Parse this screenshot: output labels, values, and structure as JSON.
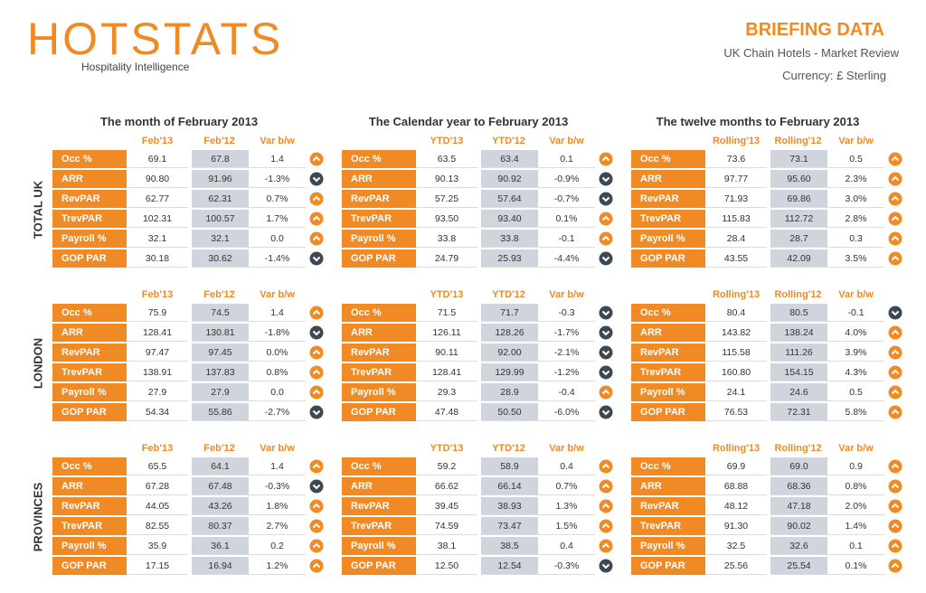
{
  "header": {
    "logo": "HOTSTATS",
    "tagline": "Hospitality Intelligence",
    "title": "BRIEFING DATA",
    "subtitle": "UK Chain Hotels - Market Review",
    "currency": "Currency: £ Sterling"
  },
  "panels": [
    {
      "title": "The month of February 2013",
      "columns": [
        "Feb'13",
        "Feb'12",
        "Var b/w"
      ]
    },
    {
      "title": "The Calendar year to February 2013",
      "columns": [
        "YTD'13",
        "YTD'12",
        "Var b/w"
      ]
    },
    {
      "title": "The twelve months to February 2013",
      "columns": [
        "Rolling'13",
        "Rolling'12",
        "Var b/w"
      ]
    }
  ],
  "row_labels": [
    "Occ %",
    "ARR",
    "RevPAR",
    "TrevPAR",
    "Payroll %",
    "GOP PAR"
  ],
  "groups": [
    {
      "label": "TOTAL UK",
      "values": [
        [
          [
            "69.1",
            "67.8",
            "1.4"
          ],
          [
            "90.80",
            "91.96",
            "-1.3%"
          ],
          [
            "62.77",
            "62.31",
            "0.7%"
          ],
          [
            "102.31",
            "100.57",
            "1.7%"
          ],
          [
            "32.1",
            "32.1",
            "0.0"
          ],
          [
            "30.18",
            "30.62",
            "-1.4%"
          ]
        ],
        [
          [
            "63.5",
            "63.4",
            "0.1"
          ],
          [
            "90.13",
            "90.92",
            "-0.9%"
          ],
          [
            "57.25",
            "57.64",
            "-0.7%"
          ],
          [
            "93.50",
            "93.40",
            "0.1%"
          ],
          [
            "33.8",
            "33.8",
            "-0.1"
          ],
          [
            "24.79",
            "25.93",
            "-4.4%"
          ]
        ],
        [
          [
            "73.6",
            "73.1",
            "0.5"
          ],
          [
            "97.77",
            "95.60",
            "2.3%"
          ],
          [
            "71.93",
            "69.86",
            "3.0%"
          ],
          [
            "115.83",
            "112.72",
            "2.8%"
          ],
          [
            "28.4",
            "28.7",
            "0.3"
          ],
          [
            "43.55",
            "42.09",
            "3.5%"
          ]
        ]
      ]
    },
    {
      "label": "LONDON",
      "values": [
        [
          [
            "75.9",
            "74.5",
            "1.4"
          ],
          [
            "128.41",
            "130.81",
            "-1.8%"
          ],
          [
            "97.47",
            "97.45",
            "0.0%"
          ],
          [
            "138.91",
            "137.83",
            "0.8%"
          ],
          [
            "27.9",
            "27.9",
            "0.0"
          ],
          [
            "54.34",
            "55.86",
            "-2.7%"
          ]
        ],
        [
          [
            "71.5",
            "71.7",
            "-0.3"
          ],
          [
            "126.11",
            "128.26",
            "-1.7%"
          ],
          [
            "90.11",
            "92.00",
            "-2.1%"
          ],
          [
            "128.41",
            "129.99",
            "-1.2%"
          ],
          [
            "29.3",
            "28.9",
            "-0.4"
          ],
          [
            "47.48",
            "50.50",
            "-6.0%"
          ]
        ],
        [
          [
            "80.4",
            "80.5",
            "-0.1"
          ],
          [
            "143.82",
            "138.24",
            "4.0%"
          ],
          [
            "115.58",
            "111.26",
            "3.9%"
          ],
          [
            "160.80",
            "154.15",
            "4.3%"
          ],
          [
            "24.1",
            "24.6",
            "0.5"
          ],
          [
            "76.53",
            "72.31",
            "5.8%"
          ]
        ]
      ]
    },
    {
      "label": "PROVINCES",
      "values": [
        [
          [
            "65.5",
            "64.1",
            "1.4"
          ],
          [
            "67.28",
            "67.48",
            "-0.3%"
          ],
          [
            "44.05",
            "43.26",
            "1.8%"
          ],
          [
            "82.55",
            "80.37",
            "2.7%"
          ],
          [
            "35.9",
            "36.1",
            "0.2"
          ],
          [
            "17.15",
            "16.94",
            "1.2%"
          ]
        ],
        [
          [
            "59.2",
            "58.9",
            "0.4"
          ],
          [
            "66.62",
            "66.14",
            "0.7%"
          ],
          [
            "39.45",
            "38.93",
            "1.3%"
          ],
          [
            "74.59",
            "73.47",
            "1.5%"
          ],
          [
            "38.1",
            "38.5",
            "0.4"
          ],
          [
            "12.50",
            "12.54",
            "-0.3%"
          ]
        ],
        [
          [
            "69.9",
            "69.0",
            "0.9"
          ],
          [
            "68.88",
            "68.36",
            "0.8%"
          ],
          [
            "48.12",
            "47.18",
            "2.0%"
          ],
          [
            "91.30",
            "90.02",
            "1.4%"
          ],
          [
            "32.5",
            "32.6",
            "0.1"
          ],
          [
            "25.56",
            "25.54",
            "0.1%"
          ]
        ]
      ]
    }
  ]
}
